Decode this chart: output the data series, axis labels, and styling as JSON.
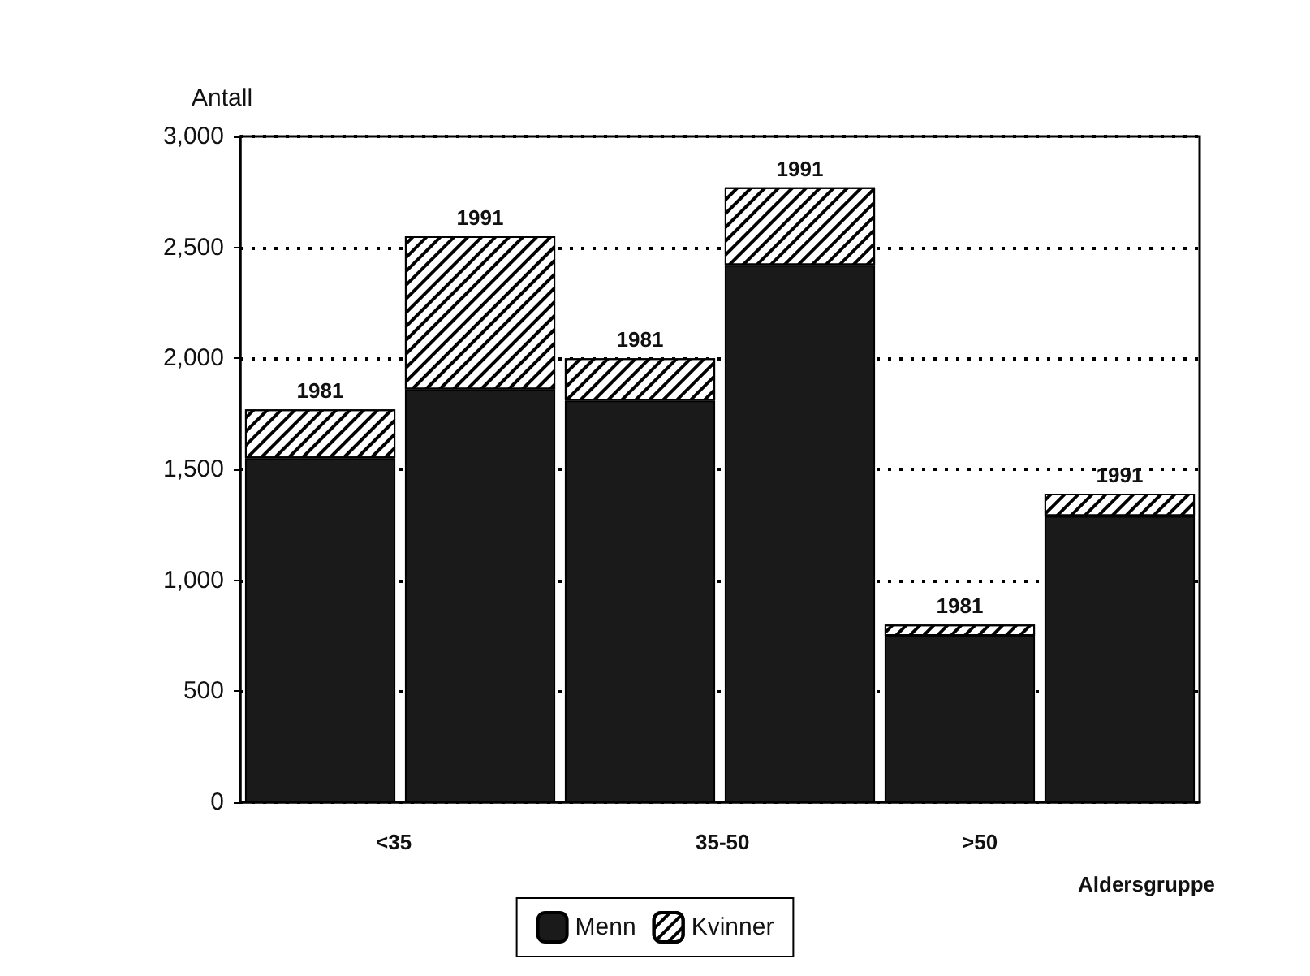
{
  "chart_data": {
    "type": "bar",
    "stacked": true,
    "ylabel": "Antall",
    "xlabel": "Aldersgruppe",
    "categories": [
      "1981",
      "1991",
      "1981",
      "1991",
      "1981",
      "1991"
    ],
    "annotations": [
      "<35",
      "35-50",
      ">50"
    ],
    "series": [
      {
        "name": "Menn",
        "color": "#1a1a1a",
        "values": [
          1550,
          1860,
          1810,
          2420,
          750,
          1290
        ]
      },
      {
        "name": "Kvinner",
        "color": "#ffffff",
        "values": [
          220,
          690,
          190,
          350,
          50,
          100
        ]
      }
    ],
    "ylim": [
      0,
      3000
    ],
    "yticks": [
      {
        "value": 0,
        "label": "0"
      },
      {
        "value": 500,
        "label": "500"
      },
      {
        "value": 1000,
        "label": "1,000"
      },
      {
        "value": 1500,
        "label": "1,500"
      },
      {
        "value": 2000,
        "label": "2,000"
      },
      {
        "value": 2500,
        "label": "2,500"
      },
      {
        "value": 3000,
        "label": "3,000"
      }
    ],
    "grid": "y",
    "legend": "bottom"
  }
}
